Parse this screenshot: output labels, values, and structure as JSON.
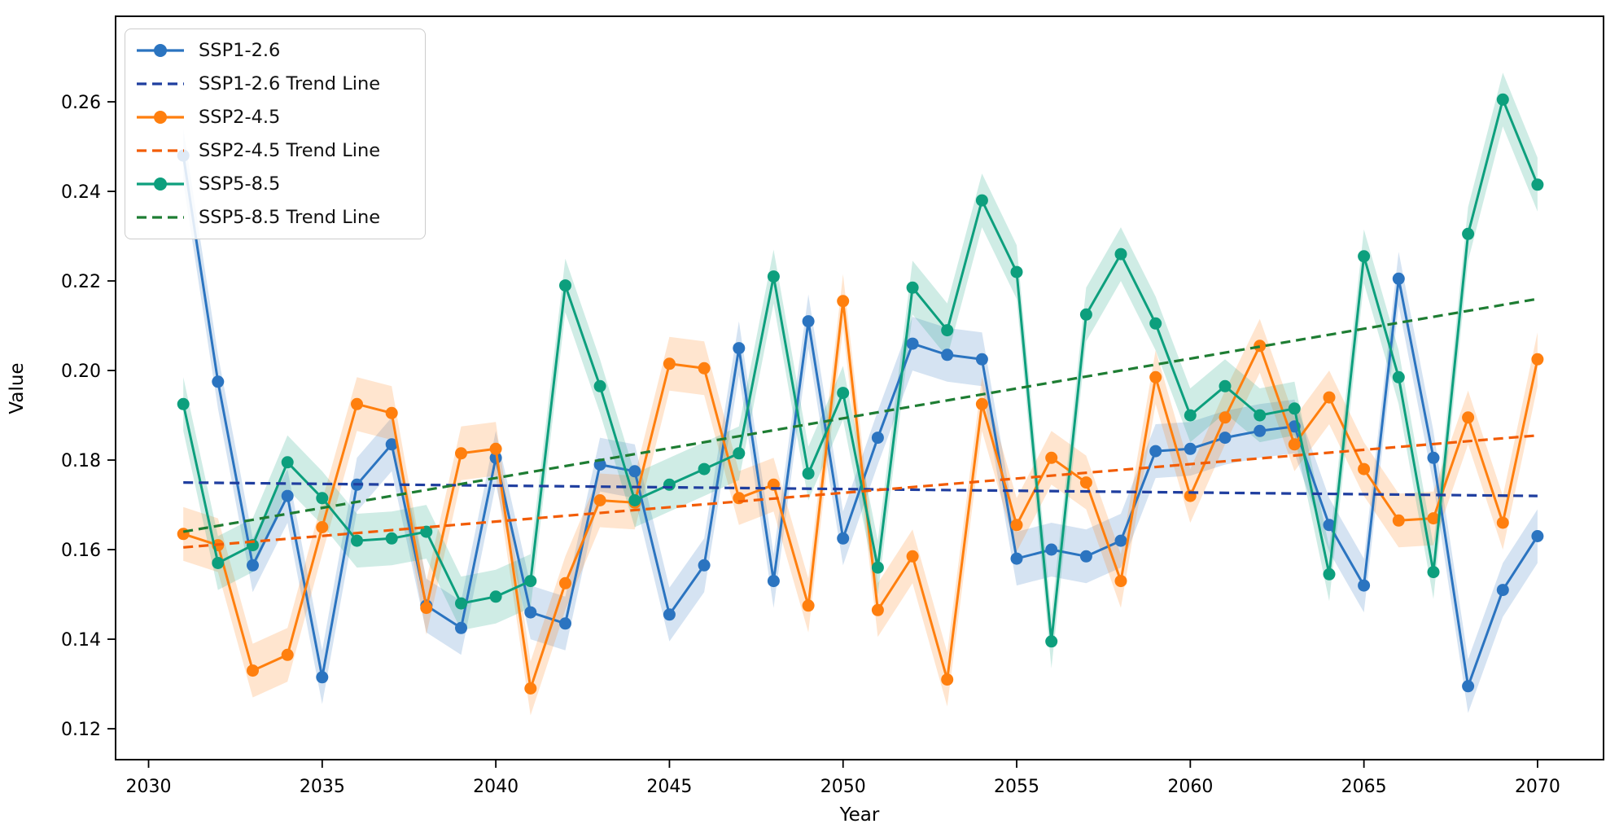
{
  "figure": {
    "background": "#ffffff"
  },
  "legend": {
    "position": "upper-left",
    "items": [
      {
        "label": "SSP1-2.6",
        "type": "marker-line",
        "color": "#2b74c0"
      },
      {
        "label": "SSP1-2.6 Trend Line",
        "type": "dashed",
        "color": "#1f3e9f"
      },
      {
        "label": "SSP2-4.5",
        "type": "marker-line",
        "color": "#ff7f0e"
      },
      {
        "label": "SSP2-4.5 Trend Line",
        "type": "dashed",
        "color": "#f25c05"
      },
      {
        "label": "SSP5-8.5",
        "type": "marker-line",
        "color": "#0d9f7d"
      },
      {
        "label": "SSP5-8.5 Trend Line",
        "type": "dashed",
        "color": "#1e7d33"
      }
    ]
  },
  "chart_data": {
    "type": "line",
    "title": "",
    "xlabel": "Year",
    "ylabel": "Value",
    "grid": false,
    "legend_position": "upper left",
    "xlim": [
      2029.05,
      2071.9
    ],
    "ylim": [
      0.1131,
      0.2791
    ],
    "x_ticks": [
      2030,
      2035,
      2040,
      2045,
      2050,
      2055,
      2060,
      2065,
      2070
    ],
    "y_ticks": [
      0.12,
      0.14,
      0.16,
      0.18,
      0.2,
      0.22,
      0.24,
      0.26
    ],
    "band_halfwidth": 0.006,
    "band_opacity": 0.2,
    "x": [
      2031,
      2032,
      2033,
      2034,
      2035,
      2036,
      2037,
      2038,
      2039,
      2040,
      2041,
      2042,
      2043,
      2044,
      2045,
      2046,
      2047,
      2048,
      2049,
      2050,
      2051,
      2052,
      2053,
      2054,
      2055,
      2056,
      2057,
      2058,
      2059,
      2060,
      2061,
      2062,
      2063,
      2064,
      2065,
      2066,
      2067,
      2068,
      2069,
      2070
    ],
    "series": [
      {
        "name": "SSP1-2.6",
        "color": "#2b74c0",
        "values": [
          0.248,
          0.1975,
          0.1565,
          0.172,
          0.1315,
          0.1745,
          0.1835,
          0.1475,
          0.1425,
          0.1805,
          0.146,
          0.1435,
          0.179,
          0.1775,
          0.1455,
          0.1565,
          0.205,
          0.153,
          0.211,
          0.1625,
          0.185,
          0.206,
          0.2035,
          0.2025,
          0.158,
          0.16,
          0.1585,
          0.162,
          0.182,
          0.1825,
          0.185,
          0.1865,
          0.1875,
          0.1655,
          0.152,
          0.2205,
          0.1805,
          0.1295,
          0.151,
          0.163
        ]
      },
      {
        "name": "SSP2-4.5",
        "color": "#ff7f0e",
        "values": [
          0.1635,
          0.161,
          0.133,
          0.1365,
          0.165,
          0.1925,
          0.1905,
          0.147,
          0.1815,
          0.1825,
          0.129,
          0.1525,
          0.171,
          0.1705,
          0.2015,
          0.2005,
          0.1715,
          0.1745,
          0.1475,
          0.2155,
          0.1465,
          0.1585,
          0.131,
          0.1925,
          0.1655,
          0.1805,
          0.175,
          0.153,
          0.1985,
          0.172,
          0.1895,
          0.2055,
          0.1835,
          0.194,
          0.178,
          0.1665,
          0.167,
          0.1895,
          0.166,
          0.2025
        ]
      },
      {
        "name": "SSP5-8.5",
        "color": "#0d9f7d",
        "values": [
          0.1925,
          0.157,
          0.161,
          0.1795,
          0.1715,
          0.162,
          0.1625,
          0.164,
          0.148,
          0.1495,
          0.153,
          0.219,
          0.1965,
          0.171,
          0.1745,
          0.178,
          0.1815,
          0.221,
          0.177,
          0.195,
          0.156,
          0.2185,
          0.209,
          0.238,
          0.222,
          0.1395,
          0.2125,
          0.226,
          0.2105,
          0.19,
          0.1965,
          0.19,
          0.1915,
          0.1545,
          0.2255,
          0.1985,
          0.155,
          0.2305,
          0.2605,
          0.2415
        ]
      }
    ],
    "trend_lines": [
      {
        "name": "SSP1-2.6 Trend Line",
        "color": "#1f3e9f",
        "start_year": 2031,
        "end_year": 2070,
        "start_value": 0.175,
        "end_value": 0.172
      },
      {
        "name": "SSP2-4.5 Trend Line",
        "color": "#f25c05",
        "start_year": 2031,
        "end_year": 2070,
        "start_value": 0.1605,
        "end_value": 0.1855
      },
      {
        "name": "SSP5-8.5 Trend Line",
        "color": "#1e7d33",
        "start_year": 2031,
        "end_year": 2070,
        "start_value": 0.164,
        "end_value": 0.216
      }
    ]
  }
}
